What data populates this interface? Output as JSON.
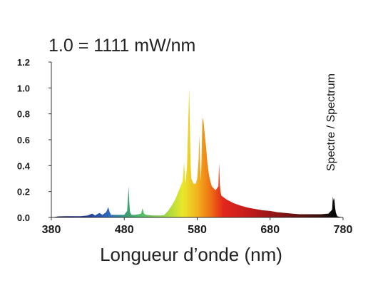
{
  "chart_data": {
    "type": "area",
    "title": "1.0 = 1111 mW/nm",
    "xlabel": "Longueur d’onde (nm)",
    "ylabel": "",
    "legend_label": "Spectre / Spectrum",
    "xlim": [
      380,
      780
    ],
    "ylim": [
      0,
      1.2
    ],
    "x_ticks": [
      "380",
      "480",
      "580",
      "680",
      "780"
    ],
    "y_ticks": [
      "0.0",
      "0.2",
      "0.4",
      "0.6",
      "0.8",
      "1.0",
      "1.2"
    ],
    "grid": false,
    "series": [
      {
        "x": [
          380,
          390,
          400,
          410,
          420,
          430,
          436,
          440,
          446,
          450,
          455,
          458,
          460,
          462,
          465,
          470,
          480,
          484,
          486,
          487,
          488,
          490,
          495,
          500,
          503,
          505,
          507,
          510,
          520,
          530,
          535,
          540,
          545,
          550,
          555,
          560,
          562,
          564,
          566,
          568,
          569,
          570,
          571,
          572,
          575,
          578,
          580,
          582,
          583,
          584,
          585,
          586,
          587,
          588,
          589,
          590,
          592,
          594,
          596,
          598,
          600,
          605,
          609,
          610,
          611,
          612,
          613,
          615,
          620,
          630,
          640,
          650,
          660,
          670,
          680,
          690,
          700,
          710,
          720,
          730,
          740,
          750,
          760,
          765,
          766,
          767,
          768,
          769,
          770,
          772,
          775,
          780
        ],
        "y": [
          0.0,
          0.008,
          0.01,
          0.01,
          0.01,
          0.015,
          0.03,
          0.015,
          0.035,
          0.02,
          0.04,
          0.08,
          0.04,
          0.02,
          0.02,
          0.02,
          0.02,
          0.05,
          0.24,
          0.1,
          0.04,
          0.02,
          0.02,
          0.025,
          0.03,
          0.07,
          0.03,
          0.02,
          0.015,
          0.015,
          0.02,
          0.05,
          0.09,
          0.14,
          0.21,
          0.28,
          0.42,
          0.26,
          0.4,
          0.78,
          1.0,
          0.7,
          0.4,
          0.3,
          0.26,
          0.26,
          0.3,
          0.45,
          0.64,
          0.4,
          0.28,
          0.45,
          0.74,
          0.77,
          0.72,
          0.66,
          0.55,
          0.42,
          0.33,
          0.28,
          0.24,
          0.21,
          0.24,
          0.42,
          0.26,
          0.2,
          0.17,
          0.16,
          0.14,
          0.11,
          0.09,
          0.075,
          0.065,
          0.055,
          0.05,
          0.04,
          0.035,
          0.03,
          0.025,
          0.025,
          0.025,
          0.025,
          0.03,
          0.06,
          0.16,
          0.13,
          0.15,
          0.08,
          0.04,
          0.01,
          0.005,
          0.0
        ]
      }
    ]
  }
}
